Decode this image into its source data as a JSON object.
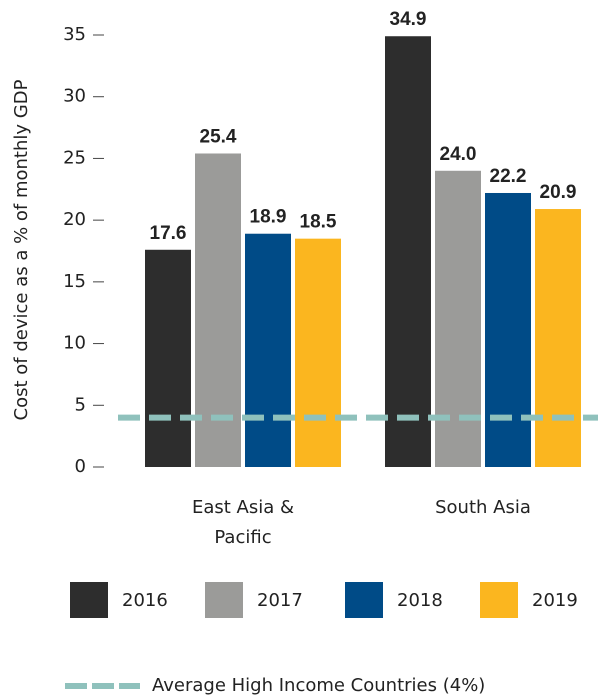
{
  "chart_data": {
    "type": "bar",
    "y_label": "Cost of device as a % of monthly GDP",
    "categories": [
      "East Asia & Pacific",
      "South Asia"
    ],
    "series": [
      {
        "name": "2016",
        "color": "#2d2d2d",
        "values": [
          17.6,
          34.9
        ],
        "value_labels": [
          "17.6",
          "34.9"
        ]
      },
      {
        "name": "2017",
        "color": "#9b9b99",
        "values": [
          25.4,
          24.0
        ],
        "value_labels": [
          "25.4",
          "24.0"
        ]
      },
      {
        "name": "2018",
        "color": "#004b87",
        "values": [
          18.9,
          22.2
        ],
        "value_labels": [
          "18.9",
          "22.2"
        ]
      },
      {
        "name": "2019",
        "color": "#fbb61f",
        "values": [
          18.5,
          20.9
        ],
        "value_labels": [
          "18.5",
          "20.9"
        ]
      }
    ],
    "reference_line": {
      "value": 4,
      "label": "Average High Income Countries (4%)",
      "color": "#8fc1bc"
    },
    "ylim": [
      0,
      35
    ],
    "yticks": [
      0,
      5,
      10,
      15,
      20,
      25,
      30,
      35
    ]
  }
}
